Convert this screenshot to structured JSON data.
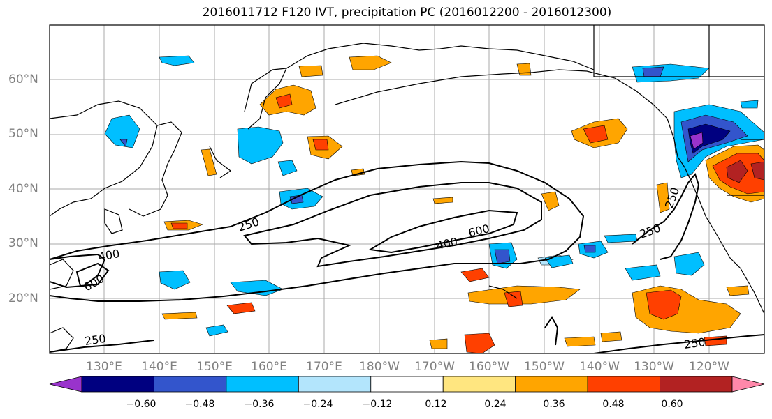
{
  "title": "2016011712 F120 IVT, precipitation PC (2016012200 - 2016012300)",
  "latitude_labels": [
    "60°N",
    "50°N",
    "40°N",
    "30°N",
    "20°N"
  ],
  "longitude_labels": [
    "130°E",
    "140°E",
    "150°E",
    "160°E",
    "170°E",
    "180°W",
    "170°W",
    "160°W",
    "150°W",
    "140°W",
    "130°W",
    "120°W"
  ],
  "contour_labels": [
    "250",
    "600",
    "400",
    "600",
    "400",
    "250",
    "250",
    "250",
    "250"
  ],
  "colorbar": {
    "tick_labels": [
      "−0.60",
      "−0.48",
      "−0.36",
      "−0.24",
      "−0.12",
      "0.12",
      "0.24",
      "0.36",
      "0.48",
      "0.60"
    ],
    "colors": [
      "#9933cc",
      "#000080",
      "#3355cc",
      "#00bfff",
      "#b3e5fc",
      "#ffffff",
      "#ffe680",
      "#ffa500",
      "#ff4000",
      "#b22222",
      "#ff88aa"
    ]
  },
  "map": {
    "extent_lon": [
      "120°E",
      "110°W"
    ],
    "extent_lat": [
      "10°N",
      "70°N"
    ]
  }
}
